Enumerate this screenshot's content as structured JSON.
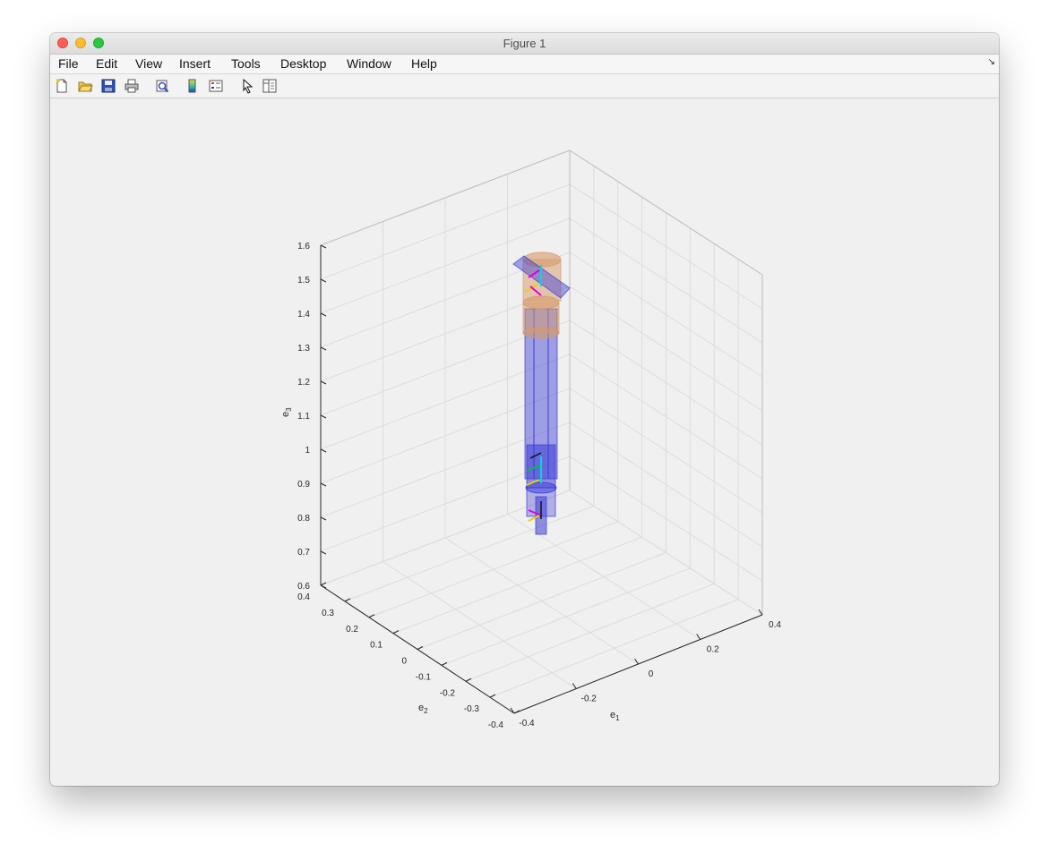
{
  "window": {
    "title": "Figure 1"
  },
  "menu": {
    "items": [
      "File",
      "Edit",
      "View",
      "Insert",
      "Tools",
      "Desktop",
      "Window",
      "Help"
    ]
  },
  "toolbar": {
    "buttons": [
      "new-figure-icon",
      "open-file-icon",
      "save-icon",
      "print-icon",
      "print-preview-icon",
      "colorbar-icon",
      "legend-icon",
      "pointer-icon",
      "property-inspector-icon"
    ]
  },
  "axes": {
    "e1_label": "e",
    "e1_sub": "1",
    "e2_label": "e",
    "e2_sub": "2",
    "e3_label": "e",
    "e3_sub": "3",
    "e1_ticks": [
      "-0.4",
      "-0.2",
      "0",
      "0.2",
      "0.4"
    ],
    "e2_ticks": [
      "-0.4",
      "-0.3",
      "-0.2",
      "-0.1",
      "0",
      "0.1",
      "0.2",
      "0.3",
      "0.4"
    ],
    "e3_ticks": [
      "0.6",
      "0.7",
      "0.8",
      "0.9",
      "1",
      "1.1",
      "1.2",
      "1.3",
      "1.4",
      "1.5",
      "1.6"
    ]
  },
  "colors": {
    "link_blue": "#3a3ad6",
    "link_tan": "#d59a6a",
    "frame_cyan": "#00d8e0",
    "frame_magenta": "#e000e0",
    "frame_yellow": "#e8d000",
    "frame_green": "#00c040"
  }
}
